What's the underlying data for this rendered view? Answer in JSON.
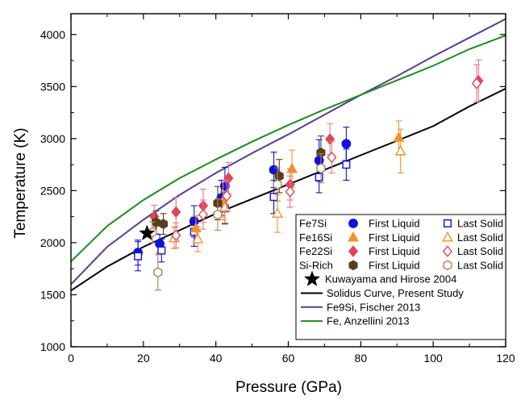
{
  "chart_data": {
    "type": "scatter",
    "title": "",
    "xlabel": "Pressure (GPa)",
    "ylabel": "Temperature (K)",
    "xlim": [
      0,
      120
    ],
    "ylim": [
      1000,
      4200
    ],
    "x_ticks": [
      "0",
      "20",
      "40",
      "60",
      "80",
      "100",
      "120"
    ],
    "y_ticks": [
      "1000",
      "1500",
      "2000",
      "2500",
      "3000",
      "3500",
      "4000"
    ],
    "grid": false,
    "legend_position": "bottom-right",
    "colors": {
      "Fe7Si": "#1111dd",
      "Fe16Si": "#f0922a",
      "Fe22Si": "#e0455a",
      "Si-Rich": "#5a3d1f",
      "Si-Rich-open": "#a8825a",
      "Fe22Si-error": "#e8768c",
      "solidus": "#000000",
      "fischer": "#5a3d8c",
      "anzellini": "#1e8c1e"
    },
    "legend": {
      "groups": [
        {
          "name": "Fe7Si",
          "first": "First Liquid",
          "last": "Last Solid",
          "color_key": "Fe7Si",
          "first_marker": "circle-filled",
          "last_marker": "square-open"
        },
        {
          "name": "Fe16Si",
          "first": "First Liquid",
          "last": "Last Solid",
          "color_key": "Fe16Si",
          "first_marker": "triangle-filled",
          "last_marker": "triangle-open"
        },
        {
          "name": "Fe22Si",
          "first": "First Liquid",
          "last": "Last Solid",
          "color_key": "Fe22Si",
          "first_marker": "diamond-filled",
          "last_marker": "diamond-open"
        },
        {
          "name": "Si-Rich",
          "first": "First Liquid",
          "last": "Last Solid",
          "color_key": "Si-Rich",
          "first_marker": "hexagon-filled",
          "last_marker": "hexagon-open"
        }
      ],
      "star_label": "Kuwayama and Hirose 2004",
      "lines": [
        {
          "label": "Solidus Curve, Present Study",
          "color_key": "solidus"
        },
        {
          "label": "Fe9Si, Fischer 2013",
          "color_key": "fischer"
        },
        {
          "label": "Fe, Anzellini 2013",
          "color_key": "anzellini"
        }
      ]
    },
    "series": [
      {
        "group": "Fe7Si",
        "kind": "first_liquid",
        "points": [
          {
            "x": 18.5,
            "y": 1905,
            "err": 120
          },
          {
            "x": 24.5,
            "y": 1990,
            "err": 90
          },
          {
            "x": 34,
            "y": 2205,
            "err": 150
          },
          {
            "x": 41.5,
            "y": 2430,
            "err": 170
          },
          {
            "x": 42.5,
            "y": 2545,
            "err": 180
          },
          {
            "x": 56,
            "y": 2700,
            "err": 170
          },
          {
            "x": 68.5,
            "y": 2790,
            "err": 200
          },
          {
            "x": 76,
            "y": 2950,
            "err": 160
          }
        ]
      },
      {
        "group": "Fe7Si",
        "kind": "last_solid",
        "points": [
          {
            "x": 18.5,
            "y": 1870,
            "err": 140
          },
          {
            "x": 25,
            "y": 1925,
            "err": 110
          },
          {
            "x": 34,
            "y": 2105,
            "err": 140
          },
          {
            "x": 42.5,
            "y": 2330,
            "err": 150
          },
          {
            "x": 56,
            "y": 2440,
            "err": 160
          },
          {
            "x": 68.5,
            "y": 2630,
            "err": 150
          },
          {
            "x": 76,
            "y": 2750,
            "err": 150
          }
        ]
      },
      {
        "group": "Fe16Si",
        "kind": "first_liquid",
        "points": [
          {
            "x": 34.5,
            "y": 2140,
            "err": 120
          },
          {
            "x": 42,
            "y": 2400,
            "err": 180
          },
          {
            "x": 61,
            "y": 2710,
            "err": 180
          },
          {
            "x": 90.5,
            "y": 3010,
            "err": 160
          }
        ]
      },
      {
        "group": "Fe16Si",
        "kind": "last_solid",
        "points": [
          {
            "x": 28.5,
            "y": 2045,
            "err": 100
          },
          {
            "x": 35,
            "y": 2035,
            "err": 120
          },
          {
            "x": 42.5,
            "y": 2340,
            "err": 150
          },
          {
            "x": 57,
            "y": 2280,
            "err": 180
          },
          {
            "x": 91,
            "y": 2880,
            "err": 210
          }
        ]
      },
      {
        "group": "Fe22Si",
        "kind": "first_liquid",
        "points": [
          {
            "x": 23,
            "y": 2250,
            "err": 110
          },
          {
            "x": 29,
            "y": 2295,
            "err": 140
          },
          {
            "x": 36.5,
            "y": 2355,
            "err": 160
          },
          {
            "x": 43.5,
            "y": 2620,
            "err": 150
          },
          {
            "x": 60.5,
            "y": 2560,
            "err": 150
          },
          {
            "x": 71.5,
            "y": 2995,
            "err": 150
          },
          {
            "x": 112.5,
            "y": 3555,
            "err": 200
          }
        ]
      },
      {
        "group": "Fe22Si",
        "kind": "last_solid",
        "points": [
          {
            "x": 29,
            "y": 2070,
            "err": 120
          },
          {
            "x": 36.5,
            "y": 2270,
            "err": 140
          },
          {
            "x": 43,
            "y": 2450,
            "err": 150
          },
          {
            "x": 60.5,
            "y": 2490,
            "err": 150
          },
          {
            "x": 72,
            "y": 2820,
            "err": 150
          },
          {
            "x": 112,
            "y": 3530,
            "err": 180
          }
        ]
      },
      {
        "group": "Si-Rich",
        "kind": "first_liquid",
        "points": [
          {
            "x": 23.5,
            "y": 2195,
            "err": 110
          },
          {
            "x": 25.5,
            "y": 2180,
            "err": 100
          },
          {
            "x": 40.5,
            "y": 2380,
            "err": 160
          },
          {
            "x": 57.5,
            "y": 2640,
            "err": 160
          },
          {
            "x": 69,
            "y": 2865,
            "err": 160
          }
        ]
      },
      {
        "group": "Si-Rich",
        "kind": "last_solid",
        "points": [
          {
            "x": 22.5,
            "y": 2100,
            "err": 100
          },
          {
            "x": 24,
            "y": 1715,
            "err": 170
          },
          {
            "x": 40.5,
            "y": 2270,
            "err": 150
          },
          {
            "x": 57,
            "y": 2560,
            "err": 160
          },
          {
            "x": 69,
            "y": 2715,
            "err": 140
          }
        ]
      }
    ],
    "star_point": {
      "x": 21,
      "y": 2090
    },
    "curves": [
      {
        "name": "Solidus Curve, Present Study",
        "color_key": "solidus",
        "points": [
          [
            0,
            1540
          ],
          [
            10,
            1770
          ],
          [
            20,
            1960
          ],
          [
            30,
            2120
          ],
          [
            40,
            2280
          ],
          [
            50,
            2420
          ],
          [
            60,
            2560
          ],
          [
            70,
            2700
          ],
          [
            80,
            2840
          ],
          [
            90,
            2980
          ],
          [
            100,
            3120
          ],
          [
            110,
            3310
          ],
          [
            120,
            3480
          ]
        ]
      },
      {
        "name": "Fe9Si, Fischer 2013",
        "color_key": "fischer",
        "points": [
          [
            0,
            1600
          ],
          [
            10,
            1960
          ],
          [
            20,
            2220
          ],
          [
            30,
            2460
          ],
          [
            40,
            2670
          ],
          [
            50,
            2860
          ],
          [
            60,
            3040
          ],
          [
            70,
            3230
          ],
          [
            80,
            3420
          ],
          [
            90,
            3600
          ],
          [
            100,
            3790
          ],
          [
            110,
            3970
          ],
          [
            120,
            4150
          ]
        ]
      },
      {
        "name": "Fe, Anzellini 2013",
        "color_key": "anzellini",
        "points": [
          [
            0,
            1820
          ],
          [
            10,
            2160
          ],
          [
            20,
            2410
          ],
          [
            30,
            2620
          ],
          [
            40,
            2800
          ],
          [
            50,
            2970
          ],
          [
            60,
            3130
          ],
          [
            70,
            3280
          ],
          [
            80,
            3420
          ],
          [
            90,
            3560
          ],
          [
            100,
            3700
          ],
          [
            110,
            3860
          ],
          [
            120,
            3990
          ]
        ]
      }
    ]
  }
}
